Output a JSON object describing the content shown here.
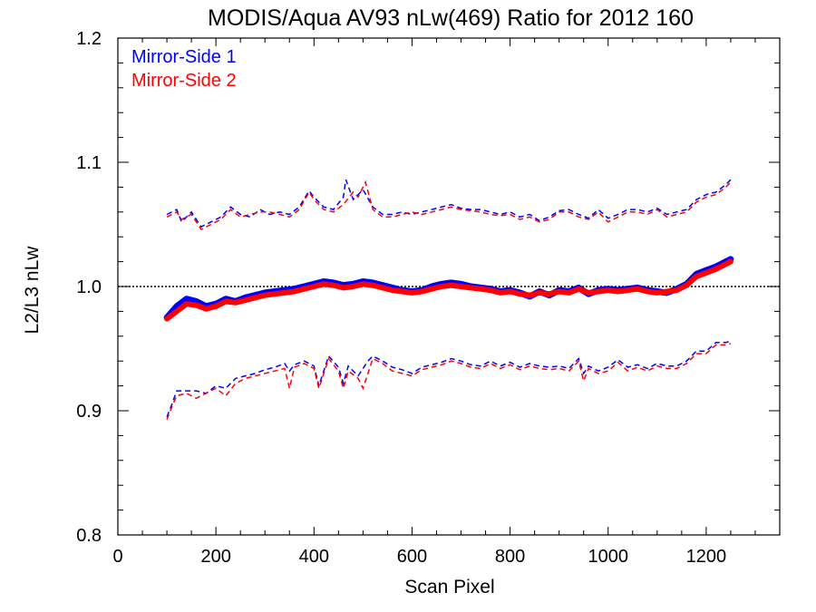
{
  "chart_data": {
    "type": "line",
    "title": "MODIS/Aqua AV93 nLw(469) Ratio for 2012 160",
    "xlabel": "Scan Pixel",
    "ylabel": "L2/L3 nLw",
    "xlim": [
      0,
      1350
    ],
    "ylim": [
      0.8,
      1.2
    ],
    "xticks": [
      0,
      200,
      400,
      600,
      800,
      1000,
      1200
    ],
    "xtick_labels": [
      "0",
      "200",
      "400",
      "600",
      "800",
      "1000",
      "1200"
    ],
    "yticks": [
      0.8,
      0.9,
      1.0,
      1.1,
      1.2
    ],
    "ytick_labels": [
      "0.8",
      "0.9",
      "1.0",
      "1.1",
      "1.2"
    ],
    "reference_line": 1.0,
    "legend_position": "top-left",
    "series": [
      {
        "name": "Mirror-Side 1",
        "color": "#0000ff",
        "mean": {
          "x": [
            100,
            120,
            140,
            160,
            180,
            200,
            220,
            240,
            260,
            280,
            300,
            320,
            340,
            360,
            380,
            400,
            420,
            440,
            460,
            480,
            500,
            520,
            540,
            560,
            580,
            600,
            620,
            640,
            660,
            680,
            700,
            720,
            740,
            760,
            780,
            800,
            820,
            840,
            860,
            880,
            900,
            920,
            940,
            960,
            980,
            1000,
            1020,
            1040,
            1060,
            1080,
            1100,
            1120,
            1140,
            1160,
            1180,
            1200,
            1220,
            1240,
            1250
          ],
          "y": [
            0.975,
            0.984,
            0.99,
            0.988,
            0.984,
            0.986,
            0.99,
            0.988,
            0.991,
            0.993,
            0.995,
            0.996,
            0.997,
            0.998,
            1.0,
            1.002,
            1.004,
            1.003,
            1.001,
            1.002,
            1.004,
            1.003,
            1.001,
            0.999,
            0.997,
            0.996,
            0.997,
            1.0,
            1.002,
            1.003,
            1.002,
            1.0,
            0.999,
            0.998,
            0.996,
            0.997,
            0.995,
            0.992,
            0.996,
            0.993,
            0.997,
            0.996,
            0.999,
            0.994,
            0.997,
            0.998,
            0.997,
            0.998,
            0.999,
            0.997,
            0.996,
            0.995,
            0.998,
            1.002,
            1.01,
            1.013,
            1.016,
            1.02,
            1.022
          ]
        },
        "upper": {
          "x": [
            100,
            120,
            130,
            150,
            170,
            190,
            210,
            230,
            250,
            270,
            290,
            310,
            330,
            350,
            370,
            390,
            400,
            420,
            440,
            460,
            465,
            480,
            500,
            520,
            540,
            560,
            580,
            600,
            620,
            640,
            660,
            680,
            700,
            720,
            740,
            760,
            780,
            800,
            820,
            840,
            860,
            880,
            900,
            920,
            940,
            960,
            980,
            1000,
            1020,
            1040,
            1060,
            1080,
            1100,
            1120,
            1140,
            1160,
            1180,
            1200,
            1220,
            1240,
            1250
          ],
          "y": [
            1.058,
            1.062,
            1.052,
            1.06,
            1.048,
            1.052,
            1.056,
            1.064,
            1.058,
            1.056,
            1.062,
            1.058,
            1.06,
            1.058,
            1.064,
            1.077,
            1.072,
            1.064,
            1.062,
            1.072,
            1.086,
            1.07,
            1.078,
            1.064,
            1.058,
            1.058,
            1.06,
            1.058,
            1.06,
            1.062,
            1.064,
            1.066,
            1.063,
            1.062,
            1.062,
            1.06,
            1.058,
            1.06,
            1.056,
            1.058,
            1.053,
            1.056,
            1.061,
            1.062,
            1.058,
            1.055,
            1.062,
            1.055,
            1.058,
            1.062,
            1.062,
            1.06,
            1.063,
            1.058,
            1.06,
            1.062,
            1.07,
            1.074,
            1.076,
            1.082,
            1.086
          ]
        },
        "lower": {
          "x": [
            100,
            110,
            120,
            140,
            160,
            180,
            200,
            220,
            240,
            260,
            280,
            300,
            320,
            340,
            350,
            360,
            380,
            400,
            410,
            430,
            450,
            460,
            470,
            490,
            510,
            520,
            540,
            560,
            580,
            600,
            620,
            640,
            660,
            680,
            700,
            720,
            740,
            760,
            780,
            800,
            820,
            840,
            860,
            880,
            900,
            920,
            940,
            950,
            960,
            980,
            1000,
            1020,
            1040,
            1060,
            1080,
            1100,
            1120,
            1140,
            1160,
            1180,
            1200,
            1220,
            1240,
            1250
          ],
          "y": [
            0.895,
            0.905,
            0.916,
            0.916,
            0.916,
            0.914,
            0.92,
            0.918,
            0.926,
            0.928,
            0.93,
            0.933,
            0.935,
            0.938,
            0.932,
            0.937,
            0.94,
            0.936,
            0.92,
            0.944,
            0.935,
            0.922,
            0.936,
            0.928,
            0.94,
            0.944,
            0.94,
            0.935,
            0.933,
            0.93,
            0.935,
            0.937,
            0.939,
            0.942,
            0.94,
            0.937,
            0.936,
            0.94,
            0.936,
            0.939,
            0.935,
            0.938,
            0.936,
            0.935,
            0.936,
            0.934,
            0.942,
            0.93,
            0.936,
            0.932,
            0.935,
            0.941,
            0.935,
            0.937,
            0.934,
            0.938,
            0.936,
            0.936,
            0.94,
            0.948,
            0.948,
            0.955,
            0.955,
            0.956
          ]
        }
      },
      {
        "name": "Mirror-Side 2",
        "color": "#ff0000",
        "mean": {
          "x": [
            100,
            120,
            140,
            160,
            180,
            200,
            220,
            240,
            260,
            280,
            300,
            320,
            340,
            360,
            380,
            400,
            420,
            440,
            460,
            480,
            500,
            520,
            540,
            560,
            580,
            600,
            620,
            640,
            660,
            680,
            700,
            720,
            740,
            760,
            780,
            800,
            820,
            840,
            860,
            880,
            900,
            920,
            940,
            960,
            980,
            1000,
            1020,
            1040,
            1060,
            1080,
            1100,
            1120,
            1140,
            1160,
            1180,
            1200,
            1220,
            1240,
            1250
          ],
          "y": [
            0.974,
            0.98,
            0.986,
            0.985,
            0.982,
            0.984,
            0.988,
            0.987,
            0.989,
            0.991,
            0.993,
            0.994,
            0.995,
            0.996,
            0.998,
            1.0,
            1.002,
            1.001,
            0.999,
            1.0,
            1.002,
            1.001,
            0.999,
            0.997,
            0.996,
            0.995,
            0.996,
            0.998,
            1.0,
            1.001,
            1.0,
            0.999,
            0.998,
            0.997,
            0.995,
            0.996,
            0.994,
            0.993,
            0.995,
            0.994,
            0.996,
            0.995,
            0.998,
            0.995,
            0.996,
            0.997,
            0.996,
            0.997,
            0.998,
            0.996,
            0.995,
            0.996,
            0.997,
            1.001,
            1.008,
            1.011,
            1.014,
            1.018,
            1.02
          ]
        },
        "upper": {
          "x": [
            100,
            120,
            130,
            150,
            170,
            190,
            210,
            230,
            250,
            270,
            290,
            310,
            330,
            350,
            370,
            390,
            400,
            420,
            440,
            460,
            480,
            490,
            505,
            520,
            540,
            560,
            580,
            600,
            620,
            640,
            660,
            680,
            700,
            720,
            740,
            760,
            780,
            800,
            820,
            840,
            860,
            880,
            900,
            920,
            940,
            960,
            980,
            1000,
            1020,
            1040,
            1060,
            1080,
            1100,
            1120,
            1140,
            1160,
            1180,
            1200,
            1220,
            1240,
            1250
          ],
          "y": [
            1.056,
            1.06,
            1.054,
            1.058,
            1.046,
            1.05,
            1.054,
            1.062,
            1.056,
            1.058,
            1.06,
            1.06,
            1.058,
            1.056,
            1.062,
            1.076,
            1.07,
            1.062,
            1.06,
            1.066,
            1.076,
            1.072,
            1.084,
            1.062,
            1.056,
            1.056,
            1.058,
            1.06,
            1.058,
            1.06,
            1.062,
            1.064,
            1.062,
            1.061,
            1.06,
            1.058,
            1.057,
            1.058,
            1.054,
            1.056,
            1.052,
            1.054,
            1.06,
            1.06,
            1.056,
            1.054,
            1.06,
            1.052,
            1.056,
            1.06,
            1.06,
            1.058,
            1.062,
            1.056,
            1.058,
            1.06,
            1.068,
            1.072,
            1.074,
            1.08,
            1.084
          ]
        },
        "lower": {
          "x": [
            100,
            110,
            120,
            140,
            160,
            180,
            200,
            220,
            240,
            260,
            280,
            300,
            320,
            340,
            350,
            360,
            380,
            400,
            410,
            430,
            450,
            460,
            470,
            490,
            500,
            510,
            520,
            540,
            560,
            580,
            600,
            620,
            640,
            660,
            680,
            700,
            720,
            740,
            760,
            780,
            800,
            820,
            840,
            860,
            880,
            900,
            920,
            940,
            950,
            960,
            980,
            1000,
            1020,
            1040,
            1060,
            1080,
            1100,
            1120,
            1140,
            1160,
            1180,
            1200,
            1220,
            1240,
            1250
          ],
          "y": [
            0.893,
            0.903,
            0.912,
            0.914,
            0.91,
            0.914,
            0.918,
            0.912,
            0.922,
            0.926,
            0.928,
            0.93,
            0.932,
            0.934,
            0.918,
            0.935,
            0.938,
            0.934,
            0.918,
            0.942,
            0.932,
            0.918,
            0.932,
            0.926,
            0.918,
            0.93,
            0.942,
            0.938,
            0.932,
            0.93,
            0.928,
            0.933,
            0.935,
            0.937,
            0.94,
            0.938,
            0.935,
            0.934,
            0.938,
            0.934,
            0.937,
            0.933,
            0.936,
            0.934,
            0.933,
            0.934,
            0.932,
            0.94,
            0.924,
            0.934,
            0.93,
            0.932,
            0.939,
            0.932,
            0.935,
            0.932,
            0.936,
            0.934,
            0.934,
            0.938,
            0.946,
            0.946,
            0.953,
            0.953,
            0.954
          ]
        }
      }
    ]
  }
}
